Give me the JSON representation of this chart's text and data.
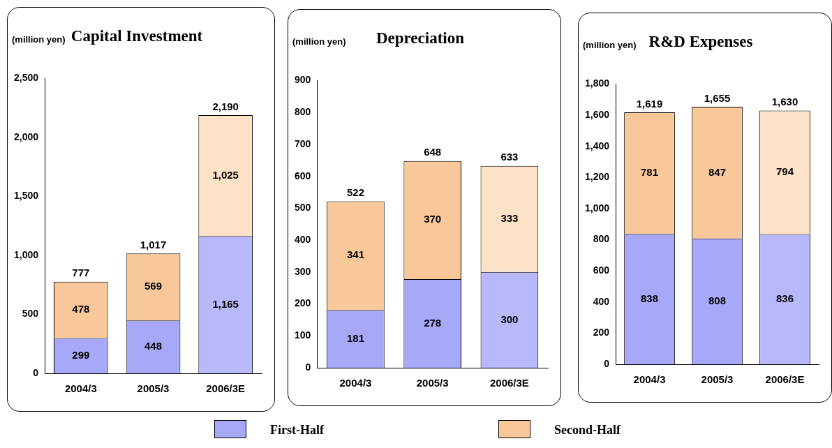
{
  "chart_data": [
    {
      "type": "bar",
      "title": "Capital Investment",
      "ylabel": "(million yen)",
      "categories": [
        "2004/3",
        "2005/3",
        "2006/3E"
      ],
      "stacked": true,
      "totals": [
        "777",
        "1,017",
        "2,190"
      ],
      "legend": "bottom",
      "ylim": [
        0,
        2500
      ],
      "yticks": [
        0,
        {
          "value": 500,
          "label": "500"
        },
        {
          "value": 1000,
          "label": "1,000"
        },
        {
          "value": 1500,
          "label": "1,500"
        },
        {
          "value": 2000,
          "label": "2,000"
        },
        {
          "value": 2500,
          "label": "2,500"
        }
      ],
      "series": [
        {
          "name": "First-Half",
          "color": "#a8a8f8",
          "colors": [
            "#a8a8f8",
            "#a8a8f8",
            "#b8b8fa"
          ],
          "values": [
            299,
            448,
            1165
          ],
          "value_labels": [
            "299",
            "448",
            "1,165"
          ]
        },
        {
          "name": "Second-Half",
          "color": "#f8c89a",
          "colors": [
            "#f8c89a",
            "#f8c89a",
            "#fde2c8"
          ],
          "values": [
            478,
            569,
            1025
          ],
          "value_labels": [
            "478",
            "569",
            "1,025"
          ]
        }
      ]
    },
    {
      "type": "bar",
      "title": "Depreciation",
      "ylabel": "(million yen)",
      "categories": [
        "2004/3",
        "2005/3",
        "2006/3E"
      ],
      "stacked": true,
      "totals": [
        "522",
        "648",
        "633"
      ],
      "ylim": [
        0,
        900
      ],
      "yticks": [
        0,
        100,
        200,
        300,
        400,
        500,
        600,
        700,
        800,
        900
      ],
      "series": [
        {
          "colors": [
            "#a8a8f8",
            "#a8a8f8",
            "#b8b8fa"
          ],
          "values": [
            181,
            278,
            300
          ],
          "value_labels": [
            "181",
            "278",
            "300"
          ]
        },
        {
          "colors": [
            "#f8c89a",
            "#f8c89a",
            "#fde2c8"
          ],
          "values": [
            341,
            370,
            333
          ],
          "value_labels": [
            "341",
            "370",
            "333"
          ]
        }
      ]
    },
    {
      "type": "bar",
      "title": "R&D Expenses",
      "ylabel": "(million yen)",
      "categories": [
        "2004/3",
        "2005/3",
        "2006/3E"
      ],
      "stacked": true,
      "totals": [
        "1,619",
        "1,655",
        "1,630"
      ],
      "ylim": [
        0,
        1800
      ],
      "yticks": [
        0,
        200,
        400,
        600,
        800,
        {
          "value": 1000,
          "label": "1,000"
        },
        {
          "value": 1200,
          "label": "1,200"
        },
        {
          "value": 1400,
          "label": "1,400"
        },
        {
          "value": 1600,
          "label": "1,600"
        },
        {
          "value": 1800,
          "label": "1,800"
        }
      ],
      "series": [
        {
          "colors": [
            "#a8a8f8",
            "#a8a8f8",
            "#b8b8fa"
          ],
          "values": [
            838,
            808,
            836
          ],
          "value_labels": [
            "838",
            "808",
            "836"
          ]
        },
        {
          "colors": [
            "#f8c89a",
            "#f8c89a",
            "#fde2c8"
          ],
          "values": [
            781,
            847,
            794
          ],
          "value_labels": [
            "781",
            "847",
            "794"
          ]
        }
      ]
    }
  ]
}
